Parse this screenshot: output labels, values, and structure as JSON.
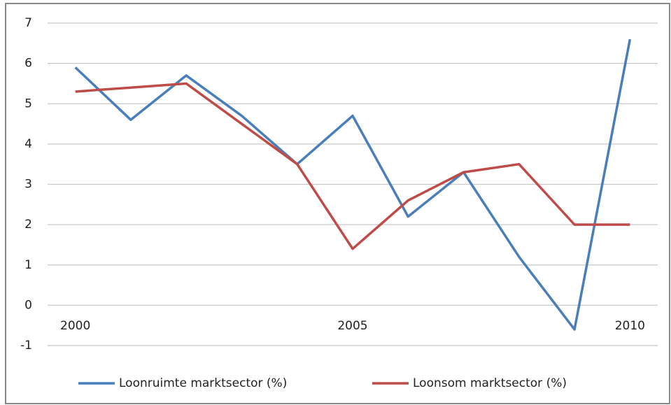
{
  "chart_data": {
    "type": "line",
    "x": [
      2000,
      2001,
      2002,
      2003,
      2004,
      2005,
      2006,
      2007,
      2008,
      2009,
      2010
    ],
    "xlim": [
      1999.5,
      2010.5
    ],
    "xticks": [
      2000,
      2005,
      2010
    ],
    "ylim": [
      -1,
      7
    ],
    "yticks": [
      -1,
      0,
      1,
      2,
      3,
      4,
      5,
      6,
      7
    ],
    "grid": true,
    "legend": "bottom",
    "series": [
      {
        "name": "Loonruimte marktsector (%)",
        "color": "#4a7ebb",
        "values": [
          5.9,
          4.6,
          5.7,
          4.7,
          3.5,
          4.7,
          2.2,
          3.3,
          1.2,
          -0.6,
          6.6
        ]
      },
      {
        "name": "Loonsom marktsector (%)",
        "color": "#be4b48",
        "values": [
          5.3,
          5.4,
          5.5,
          4.5,
          3.5,
          1.4,
          2.6,
          3.3,
          3.5,
          2.0,
          2.0
        ]
      }
    ]
  }
}
